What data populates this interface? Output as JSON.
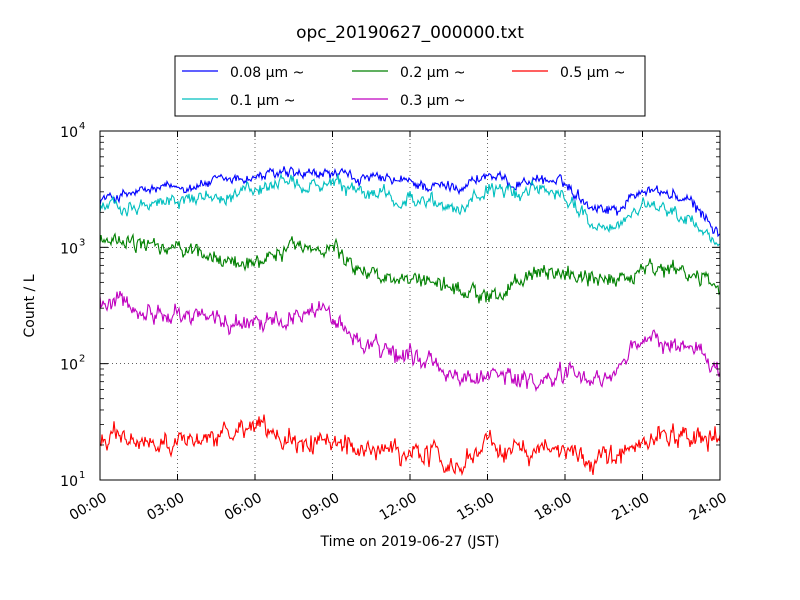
{
  "chart_data": {
    "type": "line",
    "title": "opc_20190627_000000.txt",
    "xlabel": "Time on 2019-06-27 (JST)",
    "ylabel": "Count / L",
    "x_unit": "hours",
    "xlim": [
      0,
      24
    ],
    "ylim": [
      10,
      10000
    ],
    "yscale": "log",
    "grid": true,
    "legend_position": "top-center",
    "x_ticks": [
      0,
      3,
      6,
      9,
      12,
      15,
      18,
      21,
      24
    ],
    "x_tick_labels": [
      "00:00",
      "03:00",
      "06:00",
      "09:00",
      "12:00",
      "15:00",
      "18:00",
      "21:00",
      "24:00"
    ],
    "y_ticks": [
      10,
      100,
      1000,
      10000
    ],
    "y_tick_labels": [
      {
        "base": "10",
        "exp": "1"
      },
      {
        "base": "10",
        "exp": "2"
      },
      {
        "base": "10",
        "exp": "3"
      },
      {
        "base": "10",
        "exp": "4"
      }
    ],
    "x": [
      0,
      1,
      2,
      3,
      4,
      5,
      6,
      7,
      8,
      9,
      10,
      11,
      12,
      13,
      14,
      15,
      16,
      17,
      18,
      19,
      20,
      21,
      22,
      23,
      24
    ],
    "series": [
      {
        "name": "0.08 μm ~",
        "color": "#0000ff",
        "values": [
          2600,
          2800,
          3100,
          3300,
          3500,
          3800,
          4000,
          4300,
          4100,
          4300,
          3900,
          3800,
          3600,
          3300,
          3400,
          4200,
          3500,
          3900,
          3500,
          2300,
          2100,
          3200,
          2900,
          2300,
          1300
        ]
      },
      {
        "name": "0.1 μm ~",
        "color": "#00bfbf",
        "values": [
          2200,
          2300,
          2400,
          2500,
          2700,
          2900,
          3100,
          3400,
          3300,
          3400,
          2900,
          2800,
          2600,
          2300,
          2200,
          3200,
          2800,
          3400,
          2800,
          1600,
          1500,
          2200,
          2100,
          1600,
          1050
        ]
      },
      {
        "name": "0.2 μm ~",
        "color": "#008000",
        "values": [
          1150,
          1100,
          1000,
          950,
          850,
          750,
          760,
          950,
          1000,
          1050,
          650,
          580,
          500,
          500,
          420,
          380,
          480,
          580,
          580,
          540,
          520,
          650,
          620,
          560,
          490
        ]
      },
      {
        "name": "0.3 μm ~",
        "color": "#bf00bf",
        "values": [
          380,
          330,
          290,
          270,
          250,
          230,
          230,
          250,
          290,
          260,
          160,
          130,
          115,
          100,
          75,
          80,
          75,
          70,
          80,
          75,
          80,
          170,
          140,
          140,
          85
        ]
      },
      {
        "name": "0.5 μm ~",
        "color": "#ff0000",
        "values": [
          23,
          21,
          19,
          22,
          20,
          25,
          31,
          22,
          20,
          21,
          19,
          17,
          16,
          16,
          13,
          23,
          17,
          18,
          17,
          15,
          16,
          21,
          23,
          24,
          27
        ]
      }
    ]
  }
}
